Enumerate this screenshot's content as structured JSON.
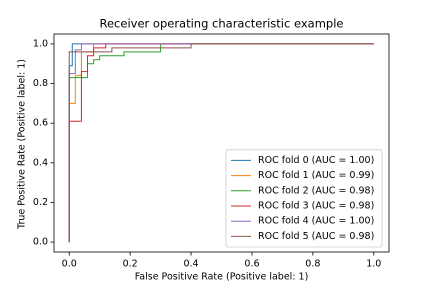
{
  "chart_data": {
    "type": "line",
    "title": "Receiver operating characteristic example",
    "x_label": "False Positive Rate (Positive label: 1)",
    "y_label": "True Positive Rate (Positive label: 1)",
    "xlim": [
      -0.05,
      1.05
    ],
    "ylim": [
      -0.05,
      1.05
    ],
    "xticks": [
      {
        "value": 0,
        "label": "0.0"
      },
      {
        "value": 0.2,
        "label": "0.2"
      },
      {
        "value": 0.4,
        "label": "0.4"
      },
      {
        "value": 0.6,
        "label": "0.6"
      },
      {
        "value": 0.8,
        "label": "0.8"
      },
      {
        "value": 1,
        "label": "1.0"
      }
    ],
    "yticks": [
      {
        "value": 0,
        "label": "0.0"
      },
      {
        "value": 0.2,
        "label": "0.2"
      },
      {
        "value": 0.4,
        "label": "0.4"
      },
      {
        "value": 0.6,
        "label": "0.6"
      },
      {
        "value": 0.8,
        "label": "0.8"
      },
      {
        "value": 1,
        "label": "1.0"
      }
    ],
    "grid": false,
    "legend": "lower right",
    "series": [
      {
        "name": "ROC fold 0 (AUC = 1.00)",
        "color": "#1f77b4",
        "x": [
          0,
          0,
          0.01,
          0.01,
          1
        ],
        "values": [
          0,
          0.89,
          0.89,
          1,
          1
        ]
      },
      {
        "name": "ROC fold 1 (AUC = 0.99)",
        "color": "#ff7f0e",
        "x": [
          0,
          0,
          0.02,
          0.02,
          0.04,
          0.04,
          0.08,
          0.08,
          1
        ],
        "values": [
          0,
          0.7,
          0.7,
          0.84,
          0.84,
          0.96,
          0.96,
          1,
          1
        ]
      },
      {
        "name": "ROC fold 2 (AUC = 0.98)",
        "color": "#2ca02c",
        "x": [
          0,
          0,
          0.06,
          0.06,
          0.08,
          0.08,
          0.1,
          0.1,
          0.18,
          0.18,
          0.3,
          0.3,
          1
        ],
        "values": [
          0,
          0.83,
          0.83,
          0.9,
          0.9,
          0.92,
          0.92,
          0.94,
          0.94,
          0.96,
          0.96,
          1,
          1
        ]
      },
      {
        "name": "ROC fold 3 (AUC = 0.98)",
        "color": "#d62728",
        "x": [
          0,
          0,
          0.04,
          0.04,
          0.06,
          0.06,
          0.08,
          0.08,
          0.12,
          0.12,
          1
        ],
        "values": [
          0,
          0.61,
          0.61,
          0.86,
          0.86,
          0.94,
          0.94,
          0.98,
          0.98,
          1,
          1
        ]
      },
      {
        "name": "ROC fold 4 (AUC = 1.00)",
        "color": "#9467bd",
        "x": [
          0,
          0,
          0.02,
          0.02,
          0.04,
          0.04,
          1
        ],
        "values": [
          0,
          0.85,
          0.85,
          0.97,
          0.97,
          1,
          1
        ]
      },
      {
        "name": "ROC fold 5 (AUC = 0.98)",
        "color": "#8c564b",
        "x": [
          0,
          0,
          0.14,
          0.14,
          0.4,
          0.4,
          1
        ],
        "values": [
          0,
          0.96,
          0.96,
          0.98,
          0.98,
          1,
          1
        ]
      }
    ]
  }
}
